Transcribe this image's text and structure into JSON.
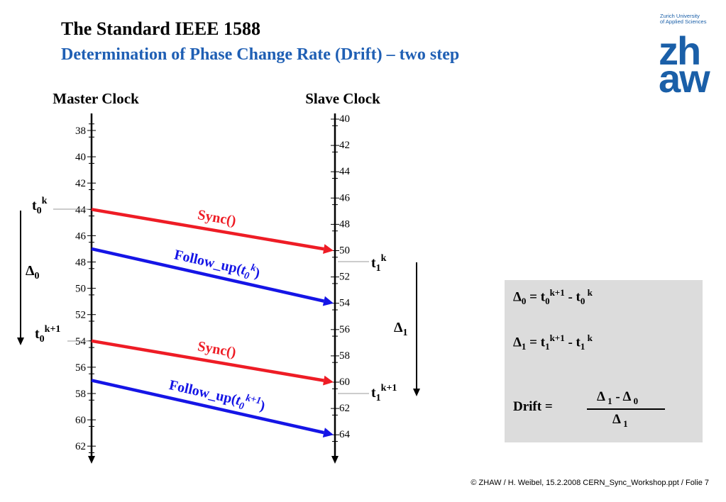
{
  "header": {
    "title": "The Standard IEEE 1588",
    "subtitle": "Determination of Phase Change Rate (Drift) – two step"
  },
  "logo": {
    "line1": "Zurich University",
    "line2": "of Applied Sciences",
    "top": "zh",
    "bottom": "aw"
  },
  "clocks": {
    "master": {
      "label": "Master Clock",
      "ticks": [
        "38",
        "40",
        "42",
        "44",
        "46",
        "48",
        "50",
        "52",
        "54",
        "56",
        "58",
        "60",
        "62"
      ]
    },
    "slave": {
      "label": "Slave Clock",
      "ticks": [
        "40",
        "42",
        "44",
        "46",
        "48",
        "50",
        "52",
        "54",
        "56",
        "58",
        "60",
        "62",
        "64"
      ]
    }
  },
  "messages": [
    {
      "kind": "sync",
      "label": "Sync()",
      "color": "#ee1c25",
      "from": 44,
      "to": 50
    },
    {
      "kind": "follow",
      "label_main": "Follow_up(",
      "label_t": "t",
      "label_sub": "0",
      "label_sup": "k",
      "label_close": ")",
      "color": "#1515e6",
      "from": 47,
      "to": 54
    },
    {
      "kind": "sync",
      "label": "Sync()",
      "color": "#ee1c25",
      "from": 54,
      "to": 60
    },
    {
      "kind": "follow",
      "label_main": "Follow_up(",
      "label_t": "t",
      "label_sub": "0",
      "label_sup": "k+1",
      "label_close": ")",
      "color": "#1515e6",
      "from": 57,
      "to": 64
    }
  ],
  "markers": {
    "t0k": {
      "t": "t",
      "sub": "0",
      "sup": "k"
    },
    "t0k1": {
      "t": "t",
      "sub": "0",
      "sup": "k+1"
    },
    "t1k": {
      "t": "t",
      "sub": "1",
      "sup": "k"
    },
    "t1k1": {
      "t": "t",
      "sub": "1",
      "sup": "k+1"
    },
    "delta0": {
      "sym": "Δ",
      "sub": "0"
    },
    "delta1": {
      "sym": "Δ",
      "sub": "1"
    }
  },
  "equations": {
    "eq1": {
      "lhs": "Δ",
      "lhs_sub": "0",
      "eq": " = t",
      "a_sub": "0",
      "a_sup": "k+1",
      "minus": " -  t",
      "b_sub": "0",
      "b_sup": " k"
    },
    "eq2": {
      "lhs": "Δ",
      "lhs_sub": "1",
      "eq": " = t",
      "a_sub": "1",
      "a_sup": "k+1",
      "minus": " -  t",
      "b_sub": "1",
      "b_sup": " k"
    },
    "drift": {
      "label": "Drift  =",
      "num_a": "Δ",
      "num_a_sub": " 1",
      "num_op": " - Δ",
      "num_b_sub": " 0",
      "den": "Δ",
      "den_sub": " 1"
    }
  },
  "footer": "© ZHAW / H. Weibel, 15.2.2008 CERN_Sync_Workshop.ppt / Folie 7"
}
